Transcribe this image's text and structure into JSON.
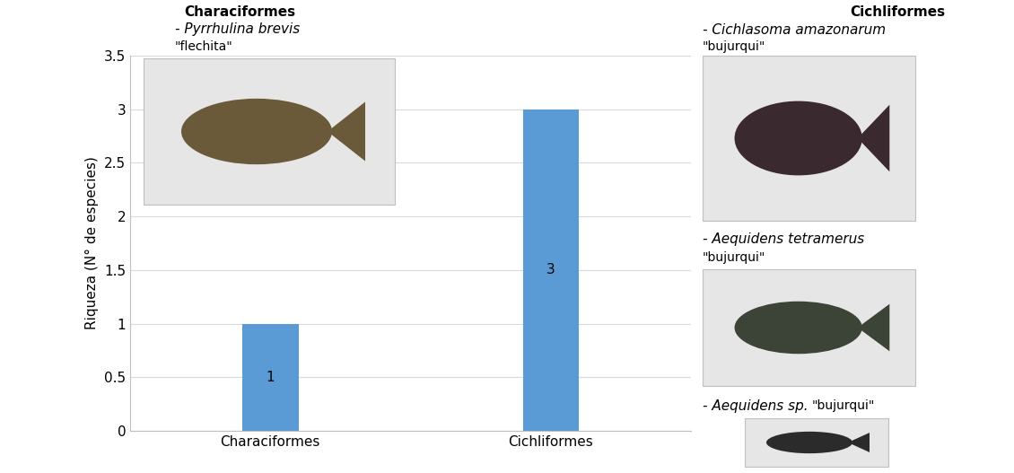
{
  "chart_data": {
    "type": "bar",
    "ylabel": "Riqueza (N° de especies)",
    "categories": [
      "Characiformes",
      "Cichliformes"
    ],
    "values": [
      1,
      3
    ],
    "color": "#5b9bd5",
    "ylim": [
      0,
      3.5
    ],
    "yticks": [
      0,
      0.5,
      1,
      1.5,
      2,
      2.5,
      3,
      3.5
    ],
    "grid": true,
    "data_labels": true,
    "panels": [
      {
        "title": "Characiformes",
        "species": [
          {
            "name": "- Pyrrhulina brevis",
            "common_name": "\"flechita\""
          }
        ]
      },
      {
        "title": "Cichliformes",
        "species": [
          {
            "name": "- Cichlasoma amazonarum",
            "common_name": "\"bujurqui\""
          },
          {
            "name": "- Aequidens tetramerus",
            "common_name": "\"bujurqui\""
          },
          {
            "name": "- Aequidens sp.",
            "common_name": "\"bujurqui\""
          }
        ]
      }
    ]
  }
}
